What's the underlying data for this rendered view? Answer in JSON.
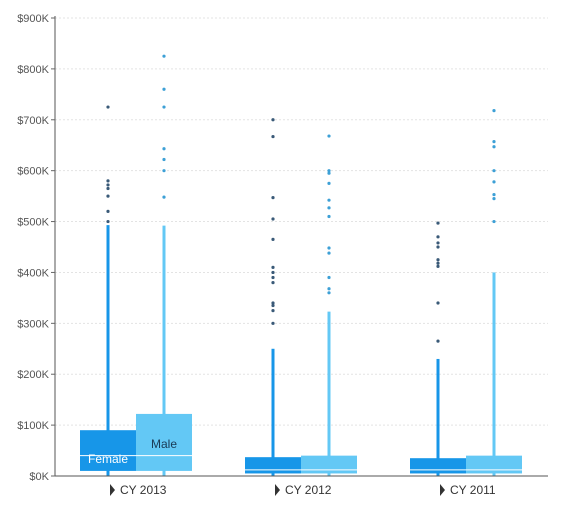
{
  "chart_data": {
    "type": "box",
    "y_tick_labels": [
      "$0K",
      "$100K",
      "$200K",
      "$300K",
      "$400K",
      "$500K",
      "$600K",
      "$700K",
      "$800K",
      "$900K"
    ],
    "y_tick_values": [
      0,
      100000,
      200000,
      300000,
      400000,
      500000,
      600000,
      700000,
      800000,
      900000
    ],
    "ylim": [
      0,
      900000
    ],
    "grid": "horizontal-dashed",
    "categories": [
      {
        "label": "CY 2013",
        "expand_icon": "triangle-right-icon"
      },
      {
        "label": "CY 2012",
        "expand_icon": "triangle-right-icon"
      },
      {
        "label": "CY 2011",
        "expand_icon": "triangle-right-icon"
      }
    ],
    "series": [
      {
        "name": "Female",
        "color": "#1796e8",
        "outlier_color": "#3a5a78",
        "boxes": [
          {
            "q1": 10000,
            "median": 40000,
            "q3": 90000,
            "whisker_low": 0,
            "whisker_high": 493000,
            "outliers": [
              500000,
              520000,
              550000,
              565000,
              572000,
              580000,
              725000
            ]
          },
          {
            "q1": 5000,
            "median": 12000,
            "q3": 37000,
            "whisker_low": 0,
            "whisker_high": 250000,
            "outliers": [
              300000,
              325000,
              335000,
              340000,
              380000,
              390000,
              400000,
              410000,
              465000,
              505000,
              547000,
              667000,
              700000
            ]
          },
          {
            "q1": 5000,
            "median": 12000,
            "q3": 35000,
            "whisker_low": 0,
            "whisker_high": 230000,
            "outliers": [
              265000,
              340000,
              412000,
              418000,
              425000,
              450000,
              458000,
              470000,
              497000
            ]
          }
        ]
      },
      {
        "name": "Male",
        "color": "#63c8f5",
        "outlier_color": "#3da0d6",
        "boxes": [
          {
            "q1": 10000,
            "median": 40000,
            "q3": 122000,
            "whisker_low": 0,
            "whisker_high": 492000,
            "outliers": [
              548000,
              600000,
              622000,
              643000,
              725000,
              760000,
              825000
            ]
          },
          {
            "q1": 5000,
            "median": 12000,
            "q3": 40000,
            "whisker_low": 0,
            "whisker_high": 323000,
            "outliers": [
              360000,
              368000,
              390000,
              438000,
              448000,
              510000,
              527000,
              542000,
              575000,
              595000,
              600000,
              668000
            ]
          },
          {
            "q1": 5000,
            "median": 12000,
            "q3": 40000,
            "whisker_low": 0,
            "whisker_high": 400000,
            "outliers": [
              500000,
              545000,
              553000,
              578000,
              600000,
              647000,
              657000,
              718000
            ]
          }
        ]
      }
    ]
  }
}
